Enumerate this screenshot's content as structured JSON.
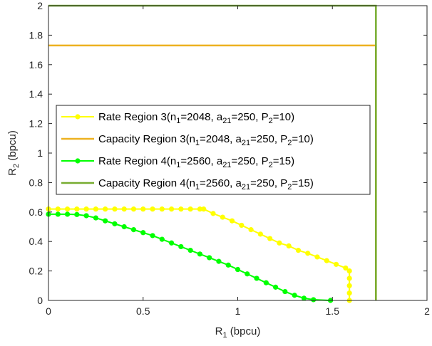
{
  "chart_data": {
    "type": "line",
    "title": "",
    "xlabel": "R",
    "xlabel_sub": "1",
    "xlabel_unit": " (bpcu)",
    "ylabel": "R",
    "ylabel_sub": "2",
    "ylabel_unit": " (bpcu)",
    "xlim": [
      0,
      2
    ],
    "ylim": [
      0,
      2
    ],
    "xticks": [
      "0",
      "0.5",
      "1",
      "1.5",
      "2"
    ],
    "yticks": [
      "0",
      "0.2",
      "0.4",
      "0.6",
      "0.8",
      "1",
      "1.2",
      "1.4",
      "1.6",
      "1.8",
      "2"
    ],
    "grid": false,
    "legend_position": "center-left",
    "series": [
      {
        "name": "Rate Region 3",
        "params": [
          [
            "n",
            "1",
            "=2048"
          ],
          [
            "a",
            "21",
            "=250"
          ],
          [
            "P",
            "2",
            "=10"
          ]
        ],
        "color": "#FFFF00",
        "markers": true,
        "x": [
          0,
          0.05,
          0.1,
          0.15,
          0.2,
          0.25,
          0.3,
          0.35,
          0.4,
          0.45,
          0.5,
          0.55,
          0.6,
          0.65,
          0.7,
          0.75,
          0.8,
          0.82,
          0.87,
          0.92,
          0.97,
          1.02,
          1.07,
          1.12,
          1.17,
          1.22,
          1.27,
          1.32,
          1.37,
          1.42,
          1.47,
          1.52,
          1.57,
          1.59,
          1.59,
          1.59,
          1.59,
          1.59
        ],
        "y": [
          0.62,
          0.62,
          0.62,
          0.62,
          0.62,
          0.62,
          0.62,
          0.62,
          0.62,
          0.62,
          0.62,
          0.62,
          0.62,
          0.62,
          0.62,
          0.62,
          0.62,
          0.62,
          0.59,
          0.565,
          0.54,
          0.51,
          0.48,
          0.45,
          0.42,
          0.39,
          0.37,
          0.34,
          0.32,
          0.295,
          0.27,
          0.245,
          0.22,
          0.2,
          0.15,
          0.1,
          0.05,
          0
        ]
      },
      {
        "name": "Capacity Region 3",
        "params": [
          [
            "n",
            "1",
            "=2048"
          ],
          [
            "a",
            "21",
            "=250"
          ],
          [
            "P",
            "2",
            "=10"
          ]
        ],
        "color": "#EDB120",
        "markers": false,
        "x": [
          0,
          1.73,
          1.73
        ],
        "y": [
          1.73,
          1.73,
          0
        ]
      },
      {
        "name": "Rate Region 4",
        "params": [
          [
            "n",
            "1",
            "=2560"
          ],
          [
            "a",
            "21",
            "=250"
          ],
          [
            "P",
            "2",
            "=15"
          ]
        ],
        "color": "#00FF00",
        "markers": true,
        "x": [
          0,
          0.05,
          0.1,
          0.15,
          0.2,
          0.25,
          0.3,
          0.35,
          0.4,
          0.45,
          0.5,
          0.55,
          0.6,
          0.65,
          0.7,
          0.75,
          0.8,
          0.85,
          0.9,
          0.95,
          1.0,
          1.05,
          1.1,
          1.15,
          1.2,
          1.25,
          1.3,
          1.35,
          1.4,
          1.49
        ],
        "y": [
          0.585,
          0.585,
          0.585,
          0.583,
          0.575,
          0.56,
          0.54,
          0.52,
          0.5,
          0.48,
          0.46,
          0.44,
          0.415,
          0.39,
          0.365,
          0.34,
          0.315,
          0.29,
          0.265,
          0.24,
          0.21,
          0.18,
          0.15,
          0.12,
          0.09,
          0.06,
          0.035,
          0.015,
          0.005,
          0
        ]
      },
      {
        "name": "Capacity Region 4",
        "params": [
          [
            "n",
            "1",
            "=2560"
          ],
          [
            "a",
            "21",
            "=250"
          ],
          [
            "P",
            "2",
            "=15"
          ]
        ],
        "color": "#77AC30",
        "markers": false,
        "x": [
          0,
          1.73,
          1.73
        ],
        "y": [
          2,
          2,
          0
        ]
      }
    ]
  }
}
